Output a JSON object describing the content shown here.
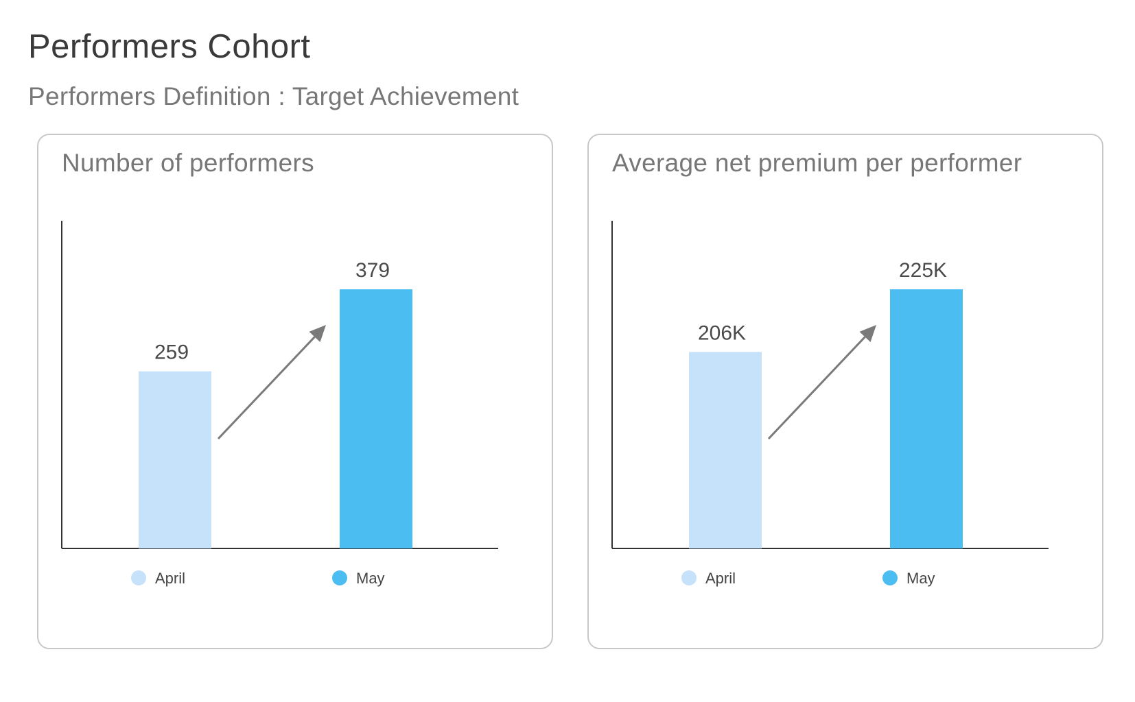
{
  "page": {
    "title": "Performers Cohort",
    "subtitle": "Performers Definition : Target Achievement"
  },
  "colors": {
    "april": "#c6e1fa",
    "may": "#4bbdf1",
    "axis": "#333333",
    "arrow": "#7a7a7a"
  },
  "chart_data": [
    {
      "type": "bar",
      "title": "Number of performers",
      "categories": [
        "April",
        "May"
      ],
      "values": [
        259,
        379
      ],
      "value_labels": [
        "259",
        "379"
      ],
      "ylim": [
        0,
        520
      ],
      "legend": [
        "April",
        "May"
      ],
      "legend_placement": "bottom",
      "grid": false,
      "annotation": "up-arrow-icon"
    },
    {
      "type": "bar",
      "title": "Average net premium per performer",
      "categories": [
        "April",
        "May"
      ],
      "values": [
        206000,
        225000
      ],
      "value_labels": [
        "206K",
        "225K"
      ],
      "ylim": [
        0,
        225000
      ],
      "legend": [
        "April",
        "May"
      ],
      "legend_placement": "bottom",
      "grid": false,
      "annotation": "up-arrow-icon"
    }
  ]
}
